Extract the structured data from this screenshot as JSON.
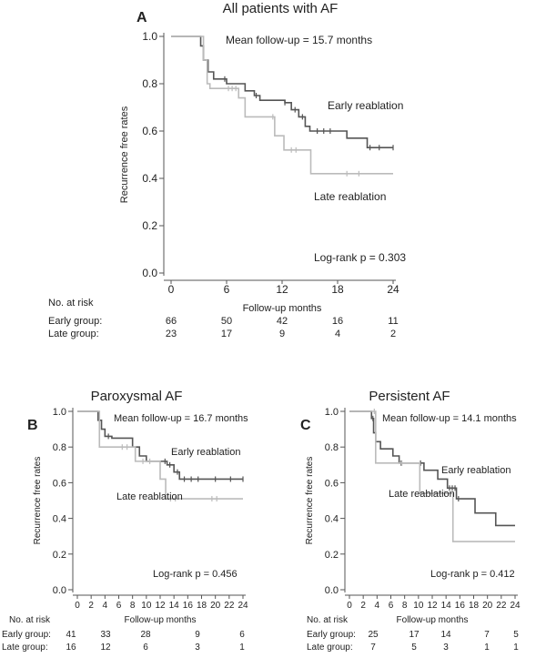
{
  "chart_data": [
    {
      "type": "line",
      "panel": "A",
      "title": "All patients with AF",
      "mean_followup": "Mean follow-up = 15.7 months",
      "pvalue": "Log-rank p = 0.303",
      "xlabel": "Follow-up months",
      "ylabel": "Recurrence free rates",
      "xlim": [
        0,
        24
      ],
      "ylim": [
        0,
        1
      ],
      "xticks": [
        "0",
        "6",
        "12",
        "18",
        "24"
      ],
      "yticks": [
        "0.0",
        "0.2",
        "0.4",
        "0.6",
        "0.8",
        "1.0"
      ],
      "series": [
        {
          "name": "Early reablation",
          "color": "#555555",
          "steps": [
            [
              0,
              1
            ],
            [
              3.2,
              0.96
            ],
            [
              3.5,
              0.9
            ],
            [
              4,
              0.85
            ],
            [
              4.6,
              0.82
            ],
            [
              6,
              0.8
            ],
            [
              8,
              0.77
            ],
            [
              9,
              0.75
            ],
            [
              9.6,
              0.73
            ],
            [
              12.3,
              0.72
            ],
            [
              13,
              0.69
            ],
            [
              13.8,
              0.66
            ],
            [
              14.5,
              0.62
            ],
            [
              15,
              0.6
            ],
            [
              19,
              0.57
            ],
            [
              21.2,
              0.53
            ],
            [
              24,
              0.53
            ]
          ],
          "censors": [
            5.8,
            9.2,
            12.3,
            13.4,
            14.2,
            15.8,
            16.5,
            17.2,
            21.5,
            22.5,
            24
          ]
        },
        {
          "name": "Late reablation",
          "color": "#bbbbbb",
          "steps": [
            [
              0,
              1
            ],
            [
              3.5,
              0.9
            ],
            [
              3.9,
              0.8
            ],
            [
              4.2,
              0.78
            ],
            [
              7.3,
              0.74
            ],
            [
              8,
              0.66
            ],
            [
              11.2,
              0.58
            ],
            [
              12.2,
              0.52
            ],
            [
              15.1,
              0.42
            ],
            [
              24,
              0.42
            ]
          ],
          "censors": [
            6.2,
            6.6,
            7,
            11,
            13,
            13.5,
            19,
            20.3
          ]
        }
      ],
      "label_early": "Early reablation",
      "label_late": "Late reablation",
      "risk": {
        "header": "No. at risk",
        "groups": [
          {
            "label": "Early group:",
            "values": [
              "66",
              "50",
              "42",
              "16",
              "11"
            ]
          },
          {
            "label": "Late group:",
            "values": [
              "23",
              "17",
              "9",
              "4",
              "2"
            ]
          }
        ]
      }
    },
    {
      "type": "line",
      "panel": "B",
      "title": "Paroxysmal AF",
      "mean_followup": "Mean  follow-up = 16.7 months",
      "pvalue": "Log-rank p = 0.456",
      "xlabel": "Follow-up months",
      "ylabel": "Recurrence free rates",
      "xlim": [
        0,
        24
      ],
      "ylim": [
        0,
        1
      ],
      "xticks": [
        "0",
        "2",
        "4",
        "6",
        "8",
        "10",
        "12",
        "14",
        "16",
        "18",
        "20",
        "22",
        "24"
      ],
      "yticks": [
        "0.0",
        "0.2",
        "0.4",
        "0.6",
        "0.8",
        "1.0"
      ],
      "series": [
        {
          "name": "Early reablation",
          "color": "#555555",
          "steps": [
            [
              0,
              1
            ],
            [
              3,
              0.95
            ],
            [
              3.5,
              0.9
            ],
            [
              4,
              0.86
            ],
            [
              5,
              0.85
            ],
            [
              8,
              0.8
            ],
            [
              9,
              0.75
            ],
            [
              10,
              0.72
            ],
            [
              13,
              0.7
            ],
            [
              14,
              0.66
            ],
            [
              14.8,
              0.62
            ],
            [
              24,
              0.62
            ]
          ],
          "censors": [
            4.5,
            12.7,
            13.4,
            14.5,
            15.5,
            16.5,
            17.5,
            20,
            22.2,
            24
          ]
        },
        {
          "name": "Late reablation",
          "color": "#bbbbbb",
          "steps": [
            [
              0,
              1
            ],
            [
              3.2,
              0.8
            ],
            [
              8.4,
              0.72
            ],
            [
              12,
              0.62
            ],
            [
              12.8,
              0.51
            ],
            [
              24,
              0.51
            ]
          ],
          "censors": [
            6.5,
            7.2,
            9.5,
            10.5,
            13.5,
            14.2,
            19.5,
            20.2
          ]
        }
      ],
      "label_early": "Early reablation",
      "label_late": "Late reablation",
      "risk": {
        "header": "No. at risk",
        "groups": [
          {
            "label": "Early group:",
            "values": [
              "41",
              "33",
              "28",
              "9",
              "6"
            ]
          },
          {
            "label": "Late group:",
            "values": [
              "16",
              "12",
              "6",
              "3",
              "1"
            ]
          }
        ]
      }
    },
    {
      "type": "line",
      "panel": "C",
      "title": "Persistent AF",
      "mean_followup": "Mean  follow-up = 14.1 months",
      "pvalue": "Log-rank p = 0.412",
      "xlabel": "Follow-up months",
      "ylabel": "Recurrence free rates",
      "xlim": [
        0,
        24
      ],
      "ylim": [
        0,
        1
      ],
      "xticks": [
        "0",
        "2",
        "4",
        "6",
        "8",
        "10",
        "12",
        "14",
        "16",
        "18",
        "20",
        "22",
        "24"
      ],
      "yticks": [
        "0.0",
        "0.2",
        "0.4",
        "0.6",
        "0.8",
        "1.0"
      ],
      "series": [
        {
          "name": "Early reablation",
          "color": "#555555",
          "steps": [
            [
              0,
              1
            ],
            [
              3.2,
              0.96
            ],
            [
              3.5,
              0.88
            ],
            [
              3.8,
              0.83
            ],
            [
              4.5,
              0.79
            ],
            [
              6.3,
              0.75
            ],
            [
              7.2,
              0.71
            ],
            [
              10.8,
              0.67
            ],
            [
              12.8,
              0.62
            ],
            [
              14.2,
              0.57
            ],
            [
              15.5,
              0.51
            ],
            [
              18.2,
              0.43
            ],
            [
              21.2,
              0.36
            ],
            [
              24,
              0.36
            ]
          ],
          "censors": [
            3.4,
            7.5,
            10.3,
            14.5,
            14.9,
            15.3,
            15.8
          ]
        },
        {
          "name": "Late reablation",
          "color": "#bbbbbb",
          "steps": [
            [
              0,
              1
            ],
            [
              3.8,
              0.71
            ],
            [
              10.2,
              0.54
            ],
            [
              15,
              0.27
            ],
            [
              24,
              0.27
            ]
          ],
          "censors": [
            3.6,
            7.6,
            13.8
          ]
        }
      ],
      "label_early": "Early reablation",
      "label_late": "Late reablation",
      "risk": {
        "header": "No. at risk",
        "groups": [
          {
            "label": "Early group:",
            "values": [
              "25",
              "17",
              "14",
              "7",
              "5"
            ]
          },
          {
            "label": "Late group:",
            "values": [
              "7",
              "5",
              "3",
              "1",
              "1"
            ]
          }
        ]
      }
    }
  ]
}
